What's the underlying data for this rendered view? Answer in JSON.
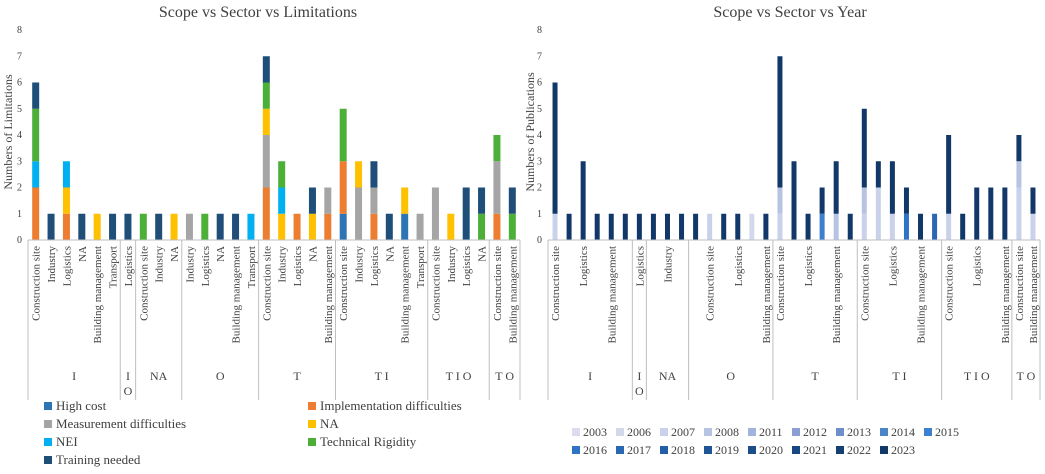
{
  "chart_data": [
    {
      "type": "bar",
      "stacked": true,
      "title": "Scope vs Sector vs Limitations",
      "xlabel": "",
      "ylabel": "Numbers of  Limitations",
      "ylim": [
        0,
        8
      ],
      "yticks": [
        "0",
        "1",
        "2",
        "3",
        "4",
        "5",
        "6",
        "7",
        "8"
      ],
      "grid": false,
      "legend_position": "bottom",
      "groups": [
        {
          "label": "I",
          "categories": [
            "Construction site",
            "Industry",
            "Logistics",
            "NA",
            "Building management",
            "Transport"
          ]
        },
        {
          "label": "I O",
          "categories": [
            "Logistics"
          ]
        },
        {
          "label": "NA",
          "categories": [
            "Construction site",
            "Industry",
            "NA"
          ]
        },
        {
          "label": "O",
          "categories": [
            "Industry",
            "Logistics",
            "NA",
            "Building management",
            "Transport"
          ]
        },
        {
          "label": "T",
          "categories": [
            "Construction site",
            "Industry",
            "Logistics",
            "NA",
            "Building management"
          ]
        },
        {
          "label": "T I",
          "categories": [
            "Construction site",
            "Industry",
            "Logistics",
            "NA",
            "Building management",
            "Transport"
          ]
        },
        {
          "label": "T I O",
          "categories": [
            "Construction site",
            "Industry",
            "Logistics",
            "NA"
          ]
        },
        {
          "label": "T O",
          "categories": [
            "Construction site",
            "Building management"
          ]
        }
      ],
      "series": [
        {
          "name": "High cost",
          "color": "#2e75b6",
          "values": [
            0,
            0,
            0,
            0,
            0,
            0,
            0,
            0,
            0,
            0,
            0,
            0,
            0,
            0,
            0,
            0,
            0,
            0,
            0,
            0,
            1,
            0,
            0,
            0,
            1,
            0,
            0,
            0,
            0,
            0,
            0,
            0
          ]
        },
        {
          "name": "Implementation difficulties",
          "color": "#ed7d31",
          "values": [
            2,
            0,
            1,
            0,
            0,
            0,
            0,
            0,
            0,
            0,
            0,
            0,
            0,
            0,
            0,
            2,
            0,
            1,
            0,
            1,
            2,
            0,
            1,
            0,
            0,
            0,
            0,
            0,
            0,
            0,
            1,
            0
          ]
        },
        {
          "name": "Measurement difficulties",
          "color": "#a5a5a5",
          "values": [
            0,
            0,
            0,
            0,
            0,
            0,
            0,
            0,
            0,
            0,
            1,
            0,
            0,
            0,
            0,
            2,
            0,
            0,
            0,
            1,
            0,
            2,
            1,
            0,
            0,
            1,
            2,
            0,
            0,
            0,
            2,
            0
          ]
        },
        {
          "name": "NA",
          "color": "#ffc000",
          "values": [
            0,
            0,
            1,
            0,
            1,
            0,
            0,
            0,
            0,
            1,
            0,
            0,
            0,
            0,
            0,
            1,
            1,
            0,
            1,
            0,
            0,
            1,
            0,
            0,
            1,
            0,
            0,
            1,
            0,
            0,
            0,
            0
          ]
        },
        {
          "name": "NEI",
          "color": "#00b0f0",
          "values": [
            1,
            0,
            1,
            0,
            0,
            0,
            0,
            0,
            0,
            0,
            0,
            0,
            0,
            0,
            1,
            0,
            1,
            0,
            0,
            0,
            0,
            0,
            0,
            0,
            0,
            0,
            0,
            0,
            0,
            0,
            0,
            0
          ]
        },
        {
          "name": "Technical Rigidity",
          "color": "#4caf38",
          "values": [
            2,
            0,
            0,
            0,
            0,
            0,
            0,
            1,
            0,
            0,
            0,
            1,
            0,
            0,
            0,
            1,
            1,
            0,
            0,
            0,
            2,
            0,
            0,
            0,
            0,
            0,
            0,
            0,
            0,
            1,
            1,
            1
          ]
        },
        {
          "name": "Training needed",
          "color": "#1f4e79",
          "values": [
            1,
            1,
            0,
            1,
            0,
            1,
            1,
            0,
            1,
            0,
            0,
            0,
            1,
            1,
            0,
            1,
            0,
            0,
            1,
            0,
            0,
            0,
            1,
            1,
            0,
            0,
            0,
            0,
            2,
            1,
            0,
            1
          ]
        }
      ]
    },
    {
      "type": "bar",
      "stacked": true,
      "title": "Scope vs Sector vs Year",
      "xlabel": "",
      "ylabel": "Numbers of  Publications",
      "ylim": [
        0,
        8
      ],
      "yticks": [
        "0",
        "1",
        "2",
        "3",
        "4",
        "5",
        "6",
        "7",
        "8"
      ],
      "grid": false,
      "legend_position": "bottom",
      "groups": [
        {
          "label": "I",
          "categories": [
            "Construction site",
            "",
            "Logistics",
            "",
            "Building management",
            ""
          ]
        },
        {
          "label": "I O",
          "categories": [
            "Logistics"
          ]
        },
        {
          "label": "NA",
          "categories": [
            "",
            "Industry",
            ""
          ]
        },
        {
          "label": "O",
          "categories": [
            "",
            "Construction site",
            "",
            "Logistics",
            "",
            "Building management"
          ]
        },
        {
          "label": "T",
          "categories": [
            "Construction site",
            "",
            "Logistics",
            "",
            "Building management",
            ""
          ]
        },
        {
          "label": "T I",
          "categories": [
            "Construction site",
            "",
            "Logistics",
            "",
            "Building management",
            ""
          ]
        },
        {
          "label": "T I O",
          "categories": [
            "Construction site",
            "",
            "Logistics",
            "",
            "Building management"
          ]
        },
        {
          "label": "T O",
          "categories": [
            "Construction site",
            "Building management"
          ]
        }
      ],
      "series": [
        {
          "name": "2003",
          "color": "#dcdcf0",
          "values": [
            0,
            0,
            0,
            0,
            0,
            0,
            0,
            0,
            0,
            0,
            0,
            0,
            0,
            0,
            0,
            0,
            0,
            0,
            0,
            0,
            0,
            0,
            0,
            0,
            0,
            0,
            0,
            0,
            0,
            0,
            0,
            0,
            0,
            0,
            0
          ]
        },
        {
          "name": "2006",
          "color": "#d4d8ec",
          "values": [
            0,
            0,
            0,
            0,
            0,
            0,
            0,
            0,
            0,
            0,
            0,
            0,
            0,
            0,
            1,
            0,
            0,
            0,
            0,
            0,
            0,
            0,
            0,
            0,
            0,
            0,
            0,
            0,
            0,
            0,
            0,
            0,
            0,
            0,
            0
          ]
        },
        {
          "name": "2007",
          "color": "#c9d2ea",
          "values": [
            1,
            0,
            0,
            0,
            0,
            0,
            0,
            0,
            0,
            0,
            0,
            1,
            0,
            0,
            0,
            0,
            1,
            0,
            0,
            0,
            0,
            0,
            1,
            2,
            1,
            0,
            0,
            0,
            1,
            0,
            0,
            0,
            0,
            2,
            1
          ]
        },
        {
          "name": "2008",
          "color": "#b7c3e2",
          "values": [
            0,
            0,
            0,
            0,
            0,
            0,
            0,
            0,
            0,
            0,
            0,
            0,
            0,
            0,
            0,
            0,
            1,
            0,
            0,
            0,
            1,
            0,
            1,
            0,
            0,
            0,
            0,
            0,
            0,
            0,
            0,
            0,
            0,
            1,
            0
          ]
        },
        {
          "name": "2011",
          "color": "#a2b4dc",
          "values": [
            0,
            0,
            0,
            0,
            0,
            0,
            0,
            0,
            0,
            0,
            0,
            0,
            0,
            0,
            0,
            0,
            0,
            0,
            0,
            0,
            0,
            0,
            0,
            0,
            0,
            0,
            0,
            0,
            0,
            0,
            0,
            0,
            0,
            0,
            0
          ]
        },
        {
          "name": "2012",
          "color": "#8aa0d2",
          "values": [
            0,
            0,
            0,
            0,
            0,
            0,
            0,
            0,
            0,
            0,
            0,
            0,
            0,
            0,
            0,
            0,
            0,
            0,
            0,
            0,
            0,
            0,
            0,
            0,
            0,
            0,
            0,
            0,
            0,
            0,
            0,
            0,
            0,
            0,
            0
          ]
        },
        {
          "name": "2013",
          "color": "#6d90cc",
          "values": [
            0,
            0,
            0,
            0,
            0,
            0,
            0,
            0,
            0,
            0,
            0,
            0,
            0,
            0,
            0,
            0,
            0,
            0,
            0,
            0,
            0,
            0,
            0,
            0,
            0,
            0,
            0,
            0,
            0,
            0,
            0,
            0,
            0,
            0,
            0
          ]
        },
        {
          "name": "2014",
          "color": "#4c84c8",
          "values": [
            0,
            0,
            0,
            0,
            0,
            0,
            0,
            0,
            0,
            0,
            0,
            0,
            0,
            0,
            0,
            0,
            0,
            0,
            0,
            0,
            0,
            0,
            0,
            0,
            0,
            0,
            0,
            0,
            0,
            0,
            0,
            0,
            0,
            0,
            0
          ]
        },
        {
          "name": "2015",
          "color": "#3d7fd0",
          "values": [
            0,
            0,
            0,
            0,
            0,
            0,
            0,
            0,
            0,
            0,
            0,
            0,
            0,
            0,
            0,
            0,
            0,
            0,
            0,
            1,
            0,
            0,
            0,
            0,
            0,
            0,
            0,
            0,
            0,
            0,
            0,
            0,
            0,
            0,
            0
          ]
        },
        {
          "name": "2016",
          "color": "#2f74c4",
          "values": [
            0,
            0,
            0,
            0,
            0,
            0,
            0,
            0,
            0,
            0,
            0,
            0,
            0,
            0,
            0,
            0,
            0,
            0,
            0,
            0,
            0,
            0,
            0,
            0,
            0,
            1,
            0,
            0,
            0,
            0,
            0,
            0,
            0,
            0,
            0
          ]
        },
        {
          "name": "2017",
          "color": "#2a68b4",
          "values": [
            0,
            0,
            0,
            0,
            0,
            0,
            0,
            0,
            0,
            0,
            0,
            0,
            0,
            0,
            0,
            0,
            0,
            0,
            0,
            0,
            0,
            0,
            0,
            0,
            0,
            0,
            0,
            1,
            0,
            0,
            0,
            0,
            0,
            0,
            0
          ]
        },
        {
          "name": "2018",
          "color": "#235ea6",
          "values": [
            0,
            0,
            0,
            0,
            0,
            0,
            0,
            0,
            0,
            0,
            0,
            0,
            0,
            0,
            0,
            0,
            0,
            0,
            0,
            0,
            0,
            0,
            0,
            0,
            0,
            0,
            0,
            0,
            0,
            0,
            0,
            0,
            0,
            0,
            0
          ]
        },
        {
          "name": "2019",
          "color": "#1d5596",
          "values": [
            0,
            0,
            0,
            0,
            0,
            0,
            0,
            0,
            0,
            0,
            0,
            0,
            0,
            0,
            0,
            0,
            0,
            0,
            0,
            0,
            0,
            0,
            0,
            0,
            0,
            0,
            0,
            0,
            0,
            0,
            0,
            0,
            0,
            0,
            0
          ]
        },
        {
          "name": "2020",
          "color": "#1a4e8a",
          "values": [
            0,
            0,
            0,
            0,
            0,
            0,
            0,
            0,
            0,
            0,
            0,
            0,
            0,
            0,
            0,
            0,
            0,
            0,
            0,
            0,
            0,
            0,
            0,
            0,
            0,
            0,
            0,
            0,
            0,
            0,
            0,
            0,
            0,
            0,
            0
          ]
        },
        {
          "name": "2021",
          "color": "#174780",
          "values": [
            0,
            0,
            0,
            0,
            0,
            0,
            0,
            0,
            0,
            0,
            0,
            0,
            0,
            0,
            0,
            0,
            0,
            0,
            0,
            0,
            0,
            0,
            0,
            0,
            0,
            0,
            0,
            0,
            0,
            0,
            0,
            0,
            0,
            0,
            0
          ]
        },
        {
          "name": "2022",
          "color": "#153f73",
          "values": [
            0,
            0,
            0,
            0,
            0,
            0,
            0,
            0,
            0,
            0,
            0,
            0,
            0,
            0,
            0,
            0,
            0,
            0,
            0,
            0,
            0,
            0,
            0,
            0,
            0,
            0,
            0,
            0,
            0,
            0,
            0,
            0,
            0,
            0,
            0
          ]
        },
        {
          "name": "2023",
          "color": "#12386a",
          "values": [
            5,
            1,
            3,
            1,
            1,
            1,
            1,
            1,
            1,
            1,
            1,
            0,
            1,
            1,
            0,
            1,
            5,
            3,
            1,
            1,
            2,
            1,
            3,
            1,
            2,
            1,
            1,
            0,
            3,
            1,
            2,
            2,
            2,
            1,
            1
          ]
        }
      ]
    }
  ]
}
